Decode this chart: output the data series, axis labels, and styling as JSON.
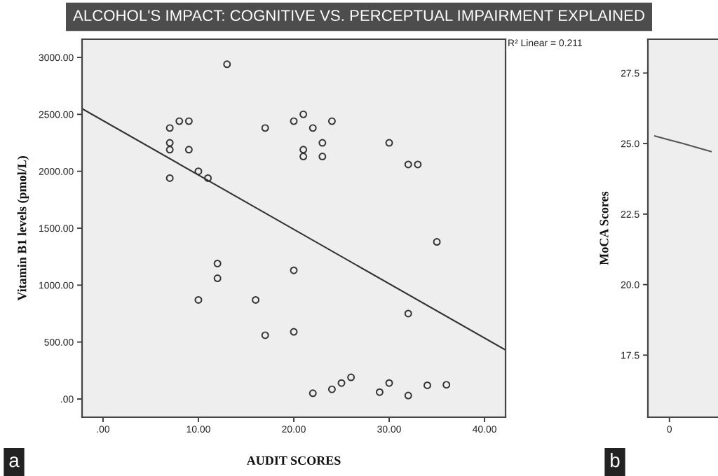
{
  "chart_data": [
    {
      "type": "scatter",
      "title": "ALCOHOL'S IMPACT: COGNITIVE VS. PERCEPTUAL IMPAIRMENT EXPLAINED",
      "xlabel": "AUDIT SCORES",
      "ylabel": "Vitamin B1 levels (pmol/L)",
      "annotations": [
        "R² Linear = 0.211",
        "a"
      ],
      "xlim": [
        -2.2,
        42.2
      ],
      "ylim": [
        -160,
        3160
      ],
      "xticks": [
        {
          "value": 0,
          "label": ".00"
        },
        {
          "value": 10,
          "label": "10.00"
        },
        {
          "value": 20,
          "label": "20.00"
        },
        {
          "value": 30,
          "label": "30.00"
        },
        {
          "value": 40,
          "label": "40.00"
        }
      ],
      "yticks": [
        {
          "value": 0,
          "label": ".00"
        },
        {
          "value": 500,
          "label": "500.00"
        },
        {
          "value": 1000,
          "label": "1000.00"
        },
        {
          "value": 1500,
          "label": "1500.00"
        },
        {
          "value": 2000,
          "label": "2000.00"
        },
        {
          "value": 2500,
          "label": "2500.00"
        },
        {
          "value": 3000,
          "label": "3000.00"
        }
      ],
      "series": [
        {
          "color": "#333333",
          "marker": "circle",
          "x": [
            7,
            7,
            7,
            7,
            8,
            9,
            9,
            10,
            10,
            11,
            12,
            12,
            13,
            16,
            17,
            17,
            20,
            20,
            20,
            21,
            21,
            21,
            22,
            22,
            23,
            23,
            24,
            24,
            25,
            26,
            29,
            30,
            30,
            32,
            32,
            32,
            33,
            34,
            35,
            36
          ],
          "values": [
            2380,
            2250,
            2190,
            1940,
            2440,
            2440,
            2190,
            2000,
            870,
            1940,
            1190,
            1060,
            2940,
            870,
            2380,
            560,
            2440,
            1130,
            590,
            2500,
            2190,
            2130,
            2380,
            50,
            2250,
            2130,
            2440,
            85,
            140,
            190,
            60,
            2250,
            140,
            2060,
            750,
            30,
            2060,
            120,
            1380,
            125
          ]
        },
        {
          "type": "line",
          "color": "#333333",
          "x": [
            -2.2,
            42.2
          ],
          "values": [
            2550,
            430
          ]
        }
      ]
    },
    {
      "type": "line",
      "ylabel": "MoCA Scores",
      "annotations": [
        "0",
        "b"
      ],
      "categories": [
        null,
        null,
        null,
        null,
        null
      ],
      "ylim": [
        15.3,
        28.7
      ],
      "yticks": [
        {
          "value": 17.5,
          "label": "17.5"
        },
        {
          "value": 20,
          "label": "20.0"
        },
        {
          "value": 22.5,
          "label": "22.5"
        },
        {
          "value": 25,
          "label": "25.0"
        },
        {
          "value": 27.5,
          "label": "27.5"
        }
      ],
      "series": [
        {
          "color": "#555555",
          "values": [
            25.27,
            25.13,
            25.0,
            24.86,
            24.72
          ]
        }
      ]
    }
  ]
}
